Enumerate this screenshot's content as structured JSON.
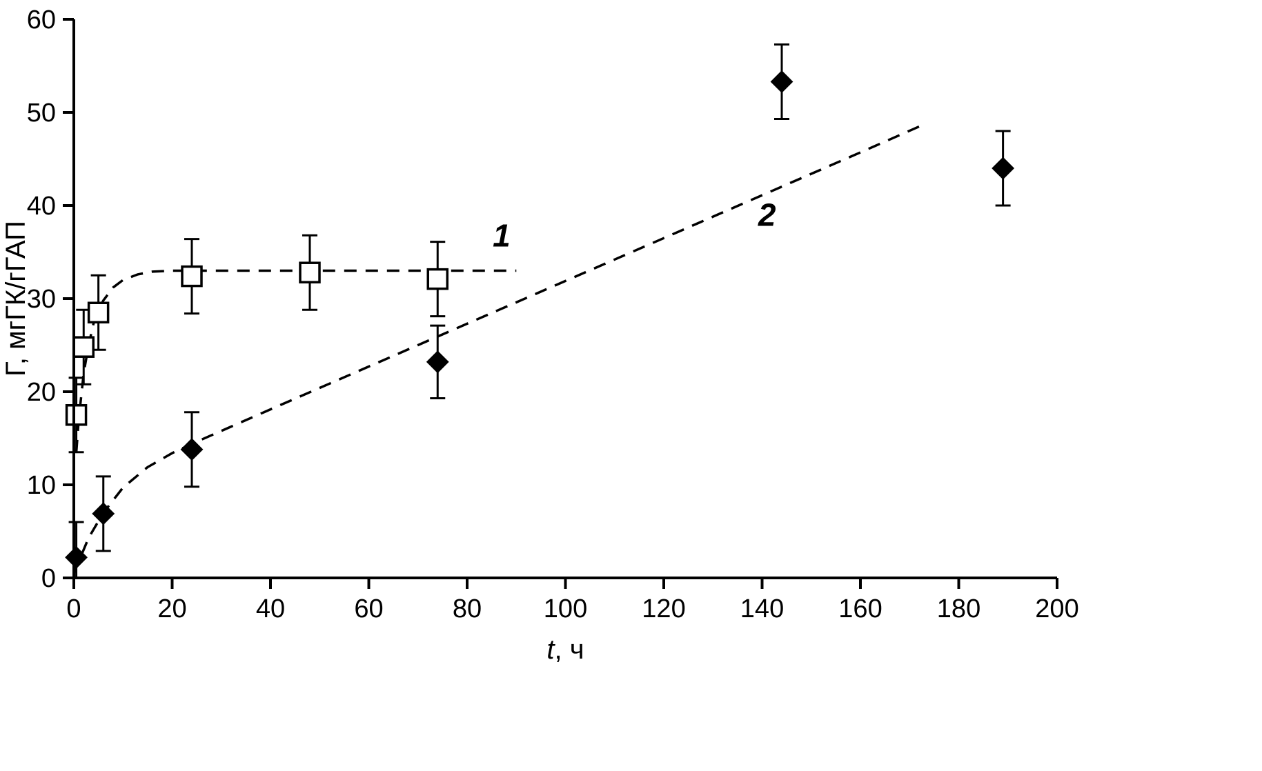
{
  "chart_data": {
    "type": "scatter",
    "title": "",
    "xlabel_var": "t",
    "xlabel_rest": ", ч",
    "ylabel": "Г, мгГК/гГАП",
    "xlim": [
      0,
      200
    ],
    "ylim": [
      0,
      60
    ],
    "x_ticks": [
      0,
      20,
      40,
      60,
      80,
      100,
      120,
      140,
      160,
      180,
      200
    ],
    "y_ticks": [
      0,
      10,
      20,
      30,
      40,
      50,
      60
    ],
    "grid": false,
    "legend_position": "inline-labels",
    "colors": {
      "axis": "#000000",
      "line": "#000000",
      "series1_fill": "#ffffff",
      "series2_fill": "#000000",
      "background": "#ffffff"
    },
    "series": [
      {
        "name": "1",
        "marker": "open-square",
        "label_position": {
          "x": 87,
          "y": 35.6
        },
        "points": [
          {
            "x": 0.5,
            "y": 17.5,
            "err": 4.0
          },
          {
            "x": 2,
            "y": 24.8,
            "err": 4.0
          },
          {
            "x": 5,
            "y": 28.5,
            "err": 4.0
          },
          {
            "x": 24,
            "y": 32.4,
            "err": 4.0
          },
          {
            "x": 48,
            "y": 32.8,
            "err": 4.0
          },
          {
            "x": 74,
            "y": 32.1,
            "err": 4.0
          }
        ],
        "fit_curve": [
          [
            0.5,
            13.5
          ],
          [
            1,
            17
          ],
          [
            2,
            22
          ],
          [
            3,
            25
          ],
          [
            4,
            27.3
          ],
          [
            5,
            28.8
          ],
          [
            6,
            29.8
          ],
          [
            8,
            31.2
          ],
          [
            10,
            32
          ],
          [
            13,
            32.6
          ],
          [
            16,
            32.9
          ],
          [
            20,
            33
          ],
          [
            90,
            33
          ]
        ]
      },
      {
        "name": "2",
        "marker": "filled-diamond",
        "label_position": {
          "x": 141,
          "y": 37.8
        },
        "points": [
          {
            "x": 0.5,
            "y": 2.2,
            "err": 3.8
          },
          {
            "x": 6,
            "y": 6.9,
            "err": 4.0
          },
          {
            "x": 24,
            "y": 13.8,
            "err": 4.0
          },
          {
            "x": 74,
            "y": 23.2,
            "err": 3.9
          },
          {
            "x": 144,
            "y": 53.3,
            "err": 4.0
          },
          {
            "x": 189,
            "y": 44.0,
            "err": 4.0
          }
        ],
        "fit_curve": [
          [
            0,
            0.5
          ],
          [
            3,
            4.3
          ],
          [
            6,
            7
          ],
          [
            10,
            9.7
          ],
          [
            15,
            11.9
          ],
          [
            20,
            13.4
          ],
          [
            24,
            14.4
          ],
          [
            40,
            18.1
          ],
          [
            60,
            22.7
          ],
          [
            80,
            27.3
          ],
          [
            100,
            31.9
          ],
          [
            120,
            36.5
          ],
          [
            140,
            41.1
          ],
          [
            160,
            45.7
          ],
          [
            172,
            48.5
          ]
        ]
      }
    ]
  }
}
